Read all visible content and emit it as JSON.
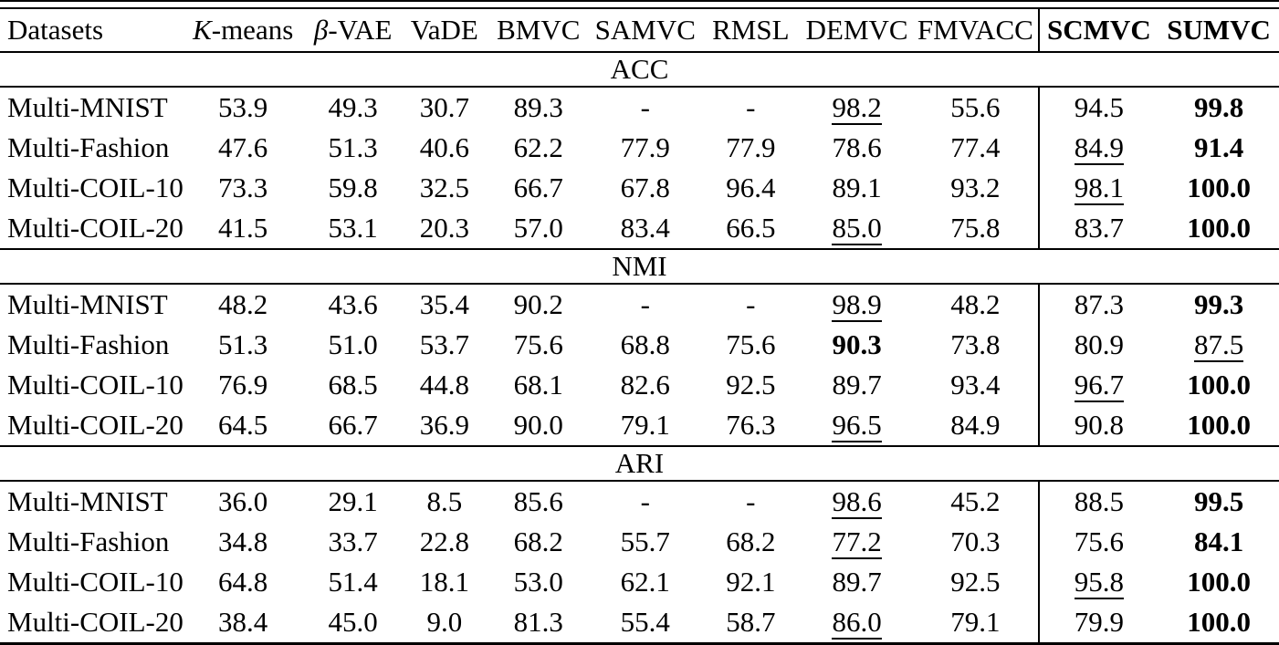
{
  "colors": {
    "text": "#000000",
    "background": "#ffffff",
    "rule": "#000000"
  },
  "table": {
    "columns": [
      {
        "id": "datasets",
        "label": "Datasets",
        "align": "left"
      },
      {
        "id": "kmeans",
        "label": "K-means",
        "italic_first": true
      },
      {
        "id": "beta-vae",
        "label": "β-VAE",
        "italic_first": true
      },
      {
        "id": "vade",
        "label": "VaDE"
      },
      {
        "id": "bmvc",
        "label": "BMVC"
      },
      {
        "id": "samvc",
        "label": "SAMVC"
      },
      {
        "id": "rmsl",
        "label": "RMSL"
      },
      {
        "id": "demvc",
        "label": "DEMVC"
      },
      {
        "id": "fmvacc",
        "label": "FMVACC"
      },
      {
        "id": "scmvc",
        "label": "SCMVC",
        "bold": true,
        "separator_left": true
      },
      {
        "id": "sumvc",
        "label": "SUMVC",
        "bold": true
      }
    ],
    "sections": [
      {
        "label": "ACC",
        "rows": [
          {
            "dataset": "Multi-MNIST",
            "cells": [
              {
                "v": "53.9"
              },
              {
                "v": "49.3"
              },
              {
                "v": "30.7"
              },
              {
                "v": "89.3"
              },
              {
                "v": "-"
              },
              {
                "v": "-"
              },
              {
                "v": "98.2",
                "underline": true
              },
              {
                "v": "55.6"
              },
              {
                "v": "94.5"
              },
              {
                "v": "99.8",
                "bold": true
              }
            ]
          },
          {
            "dataset": "Multi-Fashion",
            "cells": [
              {
                "v": "47.6"
              },
              {
                "v": "51.3"
              },
              {
                "v": "40.6"
              },
              {
                "v": "62.2"
              },
              {
                "v": "77.9"
              },
              {
                "v": "77.9"
              },
              {
                "v": "78.6"
              },
              {
                "v": "77.4"
              },
              {
                "v": "84.9",
                "underline": true
              },
              {
                "v": "91.4",
                "bold": true
              }
            ]
          },
          {
            "dataset": "Multi-COIL-10",
            "cells": [
              {
                "v": "73.3"
              },
              {
                "v": "59.8"
              },
              {
                "v": "32.5"
              },
              {
                "v": "66.7"
              },
              {
                "v": "67.8"
              },
              {
                "v": "96.4"
              },
              {
                "v": "89.1"
              },
              {
                "v": "93.2"
              },
              {
                "v": "98.1",
                "underline": true
              },
              {
                "v": "100.0",
                "bold": true
              }
            ]
          },
          {
            "dataset": "Multi-COIL-20",
            "cells": [
              {
                "v": "41.5"
              },
              {
                "v": "53.1"
              },
              {
                "v": "20.3"
              },
              {
                "v": "57.0"
              },
              {
                "v": "83.4"
              },
              {
                "v": "66.5"
              },
              {
                "v": "85.0",
                "underline": true
              },
              {
                "v": "75.8"
              },
              {
                "v": "83.7"
              },
              {
                "v": "100.0",
                "bold": true
              }
            ]
          }
        ]
      },
      {
        "label": "NMI",
        "rows": [
          {
            "dataset": "Multi-MNIST",
            "cells": [
              {
                "v": "48.2"
              },
              {
                "v": "43.6"
              },
              {
                "v": "35.4"
              },
              {
                "v": "90.2"
              },
              {
                "v": "-"
              },
              {
                "v": "-"
              },
              {
                "v": "98.9",
                "underline": true
              },
              {
                "v": "48.2"
              },
              {
                "v": "87.3"
              },
              {
                "v": "99.3",
                "bold": true
              }
            ]
          },
          {
            "dataset": "Multi-Fashion",
            "cells": [
              {
                "v": "51.3"
              },
              {
                "v": "51.0"
              },
              {
                "v": "53.7"
              },
              {
                "v": "75.6"
              },
              {
                "v": "68.8"
              },
              {
                "v": "75.6"
              },
              {
                "v": "90.3",
                "bold": true
              },
              {
                "v": "73.8"
              },
              {
                "v": "80.9"
              },
              {
                "v": "87.5",
                "underline": true
              }
            ]
          },
          {
            "dataset": "Multi-COIL-10",
            "cells": [
              {
                "v": "76.9"
              },
              {
                "v": "68.5"
              },
              {
                "v": "44.8"
              },
              {
                "v": "68.1"
              },
              {
                "v": "82.6"
              },
              {
                "v": "92.5"
              },
              {
                "v": "89.7"
              },
              {
                "v": "93.4"
              },
              {
                "v": "96.7",
                "underline": true
              },
              {
                "v": "100.0",
                "bold": true
              }
            ]
          },
          {
            "dataset": "Multi-COIL-20",
            "cells": [
              {
                "v": "64.5"
              },
              {
                "v": "66.7"
              },
              {
                "v": "36.9"
              },
              {
                "v": "90.0"
              },
              {
                "v": "79.1"
              },
              {
                "v": "76.3"
              },
              {
                "v": "96.5",
                "underline": true
              },
              {
                "v": "84.9"
              },
              {
                "v": "90.8"
              },
              {
                "v": "100.0",
                "bold": true
              }
            ]
          }
        ]
      },
      {
        "label": "ARI",
        "rows": [
          {
            "dataset": "Multi-MNIST",
            "cells": [
              {
                "v": "36.0"
              },
              {
                "v": "29.1"
              },
              {
                "v": "8.5"
              },
              {
                "v": "85.6"
              },
              {
                "v": "-"
              },
              {
                "v": "-"
              },
              {
                "v": "98.6",
                "underline": true
              },
              {
                "v": "45.2"
              },
              {
                "v": "88.5"
              },
              {
                "v": "99.5",
                "bold": true
              }
            ]
          },
          {
            "dataset": "Multi-Fashion",
            "cells": [
              {
                "v": "34.8"
              },
              {
                "v": "33.7"
              },
              {
                "v": "22.8"
              },
              {
                "v": "68.2"
              },
              {
                "v": "55.7"
              },
              {
                "v": "68.2"
              },
              {
                "v": "77.2",
                "underline": true
              },
              {
                "v": "70.3"
              },
              {
                "v": "75.6"
              },
              {
                "v": "84.1",
                "bold": true
              }
            ]
          },
          {
            "dataset": "Multi-COIL-10",
            "cells": [
              {
                "v": "64.8"
              },
              {
                "v": "51.4"
              },
              {
                "v": "18.1"
              },
              {
                "v": "53.0"
              },
              {
                "v": "62.1"
              },
              {
                "v": "92.1"
              },
              {
                "v": "89.7"
              },
              {
                "v": "92.5"
              },
              {
                "v": "95.8",
                "underline": true
              },
              {
                "v": "100.0",
                "bold": true
              }
            ]
          },
          {
            "dataset": "Multi-COIL-20",
            "cells": [
              {
                "v": "38.4"
              },
              {
                "v": "45.0"
              },
              {
                "v": "9.0"
              },
              {
                "v": "81.3"
              },
              {
                "v": "55.4"
              },
              {
                "v": "58.7"
              },
              {
                "v": "86.0",
                "underline": true
              },
              {
                "v": "79.1"
              },
              {
                "v": "79.9"
              },
              {
                "v": "100.0",
                "bold": true
              }
            ]
          }
        ]
      }
    ]
  }
}
